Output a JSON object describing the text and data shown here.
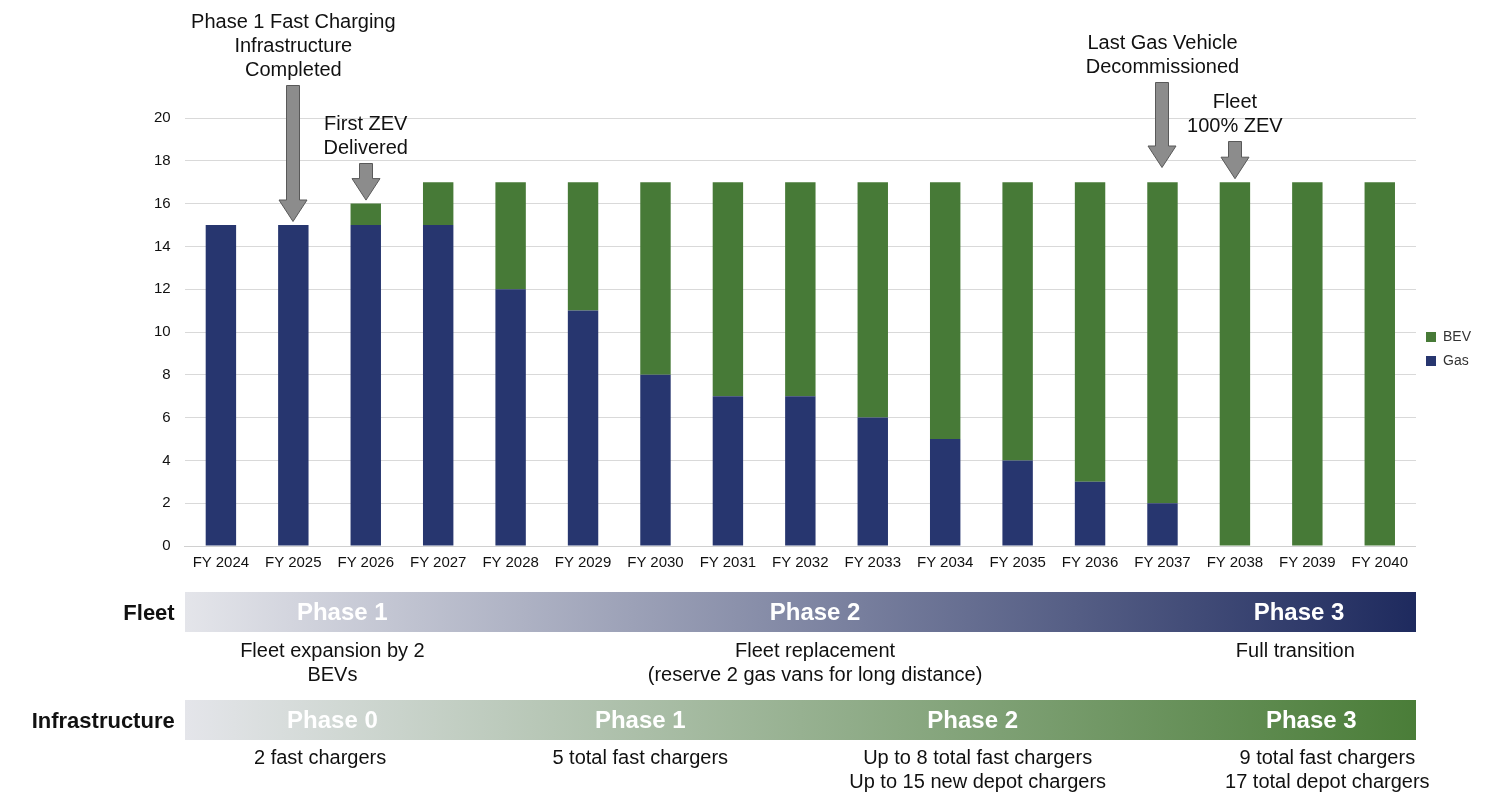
{
  "chart_data": {
    "type": "bar",
    "stacked": true,
    "grid": "y",
    "legend": "right",
    "categories": [
      "FY 2024",
      "FY 2025",
      "FY 2026",
      "FY 2027",
      "FY 2028",
      "FY 2029",
      "FY 2030",
      "FY 2031",
      "FY 2032",
      "FY 2033",
      "FY 2034",
      "FY 2035",
      "FY 2036",
      "FY 2037",
      "FY 2038",
      "FY 2039",
      "FY 2040"
    ],
    "series": [
      {
        "name": "Gas",
        "color": "#27366f",
        "values": [
          15,
          15,
          15,
          15,
          12,
          11,
          8,
          7,
          7,
          6,
          5,
          4,
          3,
          2,
          0,
          0,
          0
        ]
      },
      {
        "name": "BEV",
        "color": "#477a37",
        "values": [
          0,
          0,
          1,
          2,
          5,
          6,
          9,
          10,
          10,
          11,
          12,
          13,
          14,
          15,
          17,
          17,
          17
        ]
      }
    ],
    "ylim": [
      0,
      20
    ],
    "yticks": [
      0,
      2,
      4,
      6,
      8,
      10,
      12,
      14,
      16,
      18,
      20
    ],
    "annotations": [
      "Phase 1 Fast Charging\nInfrastructure\nCompleted",
      {
        "text": "First ZEV\nDelivered",
        "x": "FY 2026",
        "y": 16
      },
      "Last Gas Vehicle\nDecommissioned",
      {
        "text": "Fleet\n100% ZEV",
        "x": "FY 2038",
        "y": 17
      },
      "Fleet",
      "Phase 1",
      "Phase 2",
      "Phase 3",
      "Fleet expansion by 2\nBEVs",
      "Fleet replacement\n(reserve 2 gas vans for long distance)",
      "Full transition",
      "Infrastructure",
      "Phase 0",
      "Phase 1",
      "Phase 2",
      "Phase 3",
      "2 fast chargers",
      "5 total fast chargers",
      "Up to 8 total fast chargers\nUp to 15 new depot chargers",
      "9 total fast chargers\n17 total depot chargers"
    ]
  }
}
